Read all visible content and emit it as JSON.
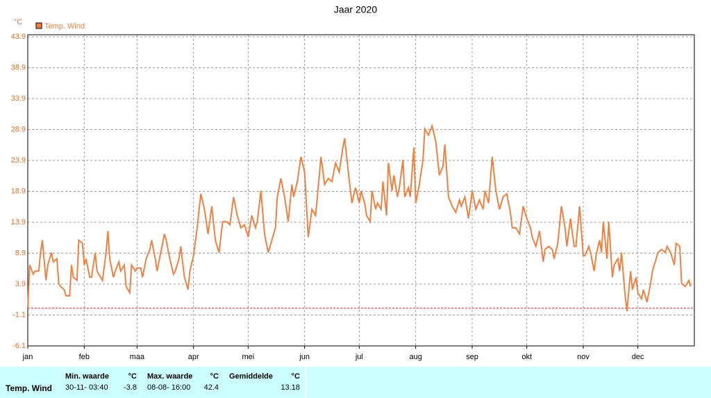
{
  "chart_data": {
    "type": "line",
    "title": "Jaar 2020",
    "unit": "°C",
    "xlim": [
      0,
      366
    ],
    "xticks": [
      {
        "value": 0,
        "label": "jan"
      },
      {
        "value": 31,
        "label": "feb"
      },
      {
        "value": 60,
        "label": "maa"
      },
      {
        "value": 91,
        "label": "apr"
      },
      {
        "value": 121,
        "label": "mei"
      },
      {
        "value": 152,
        "label": "jun"
      },
      {
        "value": 182,
        "label": "jul"
      },
      {
        "value": 213,
        "label": "aug"
      },
      {
        "value": 244,
        "label": "sep"
      },
      {
        "value": 274,
        "label": "okt"
      },
      {
        "value": 305,
        "label": "nov"
      },
      {
        "value": 335,
        "label": "dec"
      }
    ],
    "ylim": [
      -6.1,
      43.9
    ],
    "yticks": [
      -6.1,
      -1.1,
      3.9,
      8.9,
      13.9,
      18.9,
      23.9,
      28.9,
      33.9,
      38.9,
      43.9
    ],
    "grid": true,
    "hline": 0,
    "hline_color": "#e02020",
    "x": [
      0,
      1,
      3,
      4,
      6,
      7,
      8,
      10,
      11,
      13,
      14,
      16,
      17,
      18,
      20,
      21,
      23,
      24,
      25,
      27,
      28,
      30,
      31,
      32,
      34,
      35,
      37,
      38,
      40,
      41,
      43,
      44,
      45,
      47,
      48,
      50,
      51,
      53,
      54,
      56,
      57,
      59,
      60,
      62,
      63,
      65,
      67,
      68,
      70,
      71,
      73,
      75,
      76,
      78,
      80,
      81,
      83,
      84,
      86,
      88,
      89,
      91,
      93,
      95,
      97,
      99,
      101,
      103,
      105,
      107,
      109,
      111,
      113,
      115,
      117,
      119,
      121,
      123,
      125,
      126,
      128,
      130,
      132,
      134,
      136,
      137,
      139,
      141,
      143,
      145,
      146,
      148,
      150,
      152,
      154,
      156,
      158,
      159,
      161,
      163,
      165,
      167,
      169,
      171,
      173,
      174,
      176,
      178,
      180,
      182,
      183,
      185,
      186,
      188,
      189,
      191,
      192,
      194,
      195,
      197,
      198,
      200,
      201,
      203,
      204,
      206,
      207,
      209,
      210,
      212,
      213,
      215,
      217,
      218,
      220,
      222,
      224,
      226,
      228,
      229,
      231,
      233,
      235,
      237,
      238,
      240,
      242,
      244,
      246,
      248,
      250,
      251,
      253,
      255,
      257,
      259,
      261,
      263,
      265,
      266,
      268,
      270,
      272,
      274,
      276,
      277,
      279,
      281,
      283,
      284,
      286,
      288,
      289,
      291,
      293,
      295,
      296,
      298,
      300,
      301,
      303,
      305,
      306,
      308,
      309,
      311,
      312,
      314,
      315,
      316,
      318,
      319,
      321,
      322,
      324,
      325,
      326,
      328,
      329,
      331,
      332,
      334,
      335,
      337,
      338,
      340,
      342,
      343,
      345,
      346,
      348,
      350,
      351,
      353,
      355,
      356,
      358,
      359,
      361,
      363,
      364
    ],
    "series": [
      {
        "name": "Temp. Wind",
        "color": "#f08040",
        "values": [
          0,
          7,
          5.5,
          6,
          6,
          9,
          11,
          4.5,
          7,
          9,
          7.5,
          8,
          4,
          3.5,
          3,
          2,
          2,
          7,
          5,
          4.5,
          11,
          10.5,
          7,
          8,
          5,
          5,
          9,
          6,
          5,
          4.5,
          9,
          12.5,
          8,
          5,
          6,
          7.5,
          6,
          7,
          3.5,
          2.5,
          7,
          6,
          6.5,
          6.5,
          5,
          8,
          9.5,
          11,
          8,
          6,
          9,
          12,
          11,
          8,
          5.5,
          6,
          8,
          10,
          5,
          3,
          6,
          8.5,
          13,
          18.5,
          16,
          12,
          16.5,
          11,
          9,
          14,
          14,
          13.5,
          18,
          15,
          13,
          13.5,
          11.5,
          15,
          13,
          14,
          19,
          12,
          9,
          11,
          13,
          18,
          21,
          18,
          14,
          20,
          18,
          20.5,
          24.5,
          22,
          11.5,
          16,
          15,
          18,
          24.5,
          20,
          21,
          20.5,
          23.5,
          22,
          26,
          27.5,
          22,
          17,
          19.5,
          17,
          19,
          17,
          15,
          14,
          19,
          16,
          17,
          16,
          20.5,
          15,
          23.5,
          19,
          21.5,
          18,
          19.5,
          24,
          18,
          19.5,
          18,
          26,
          17,
          20,
          24,
          29,
          28,
          29.5,
          27,
          21.5,
          23,
          26.5,
          18,
          16.5,
          15.5,
          17.5,
          16.5,
          18,
          14.5,
          19,
          16,
          17.5,
          16,
          19,
          17,
          24.5,
          19,
          16,
          18,
          18.5,
          15.5,
          13,
          13,
          12,
          16.5,
          14.5,
          13,
          11.5,
          10,
          12.5,
          7.5,
          9.5,
          10,
          9.5,
          8,
          10.5,
          16.5,
          13,
          10,
          14.5,
          10,
          10,
          16.5,
          8.5,
          8.5,
          10,
          9,
          6,
          8.5,
          11,
          9,
          14,
          8,
          14,
          5,
          7,
          8,
          6,
          9,
          2,
          -0.5,
          6,
          3,
          5,
          2.5,
          1.5,
          3,
          1,
          4,
          6,
          8,
          9,
          9.5,
          9,
          10,
          9,
          7,
          10.5,
          10,
          4,
          3.5,
          4.5,
          3.5
        ]
      }
    ]
  },
  "table": {
    "row_label": "Temp. Wind",
    "columns": [
      {
        "header": "Min. waarde",
        "unit": "°C",
        "time": "30-11- 03:40",
        "value": -3.8
      },
      {
        "header": "Max. waarde",
        "unit": "°C",
        "time": "08-08- 16:00",
        "value": 42.4
      },
      {
        "header": "Gemiddelde",
        "unit": "°C",
        "value": 13.18
      }
    ]
  }
}
